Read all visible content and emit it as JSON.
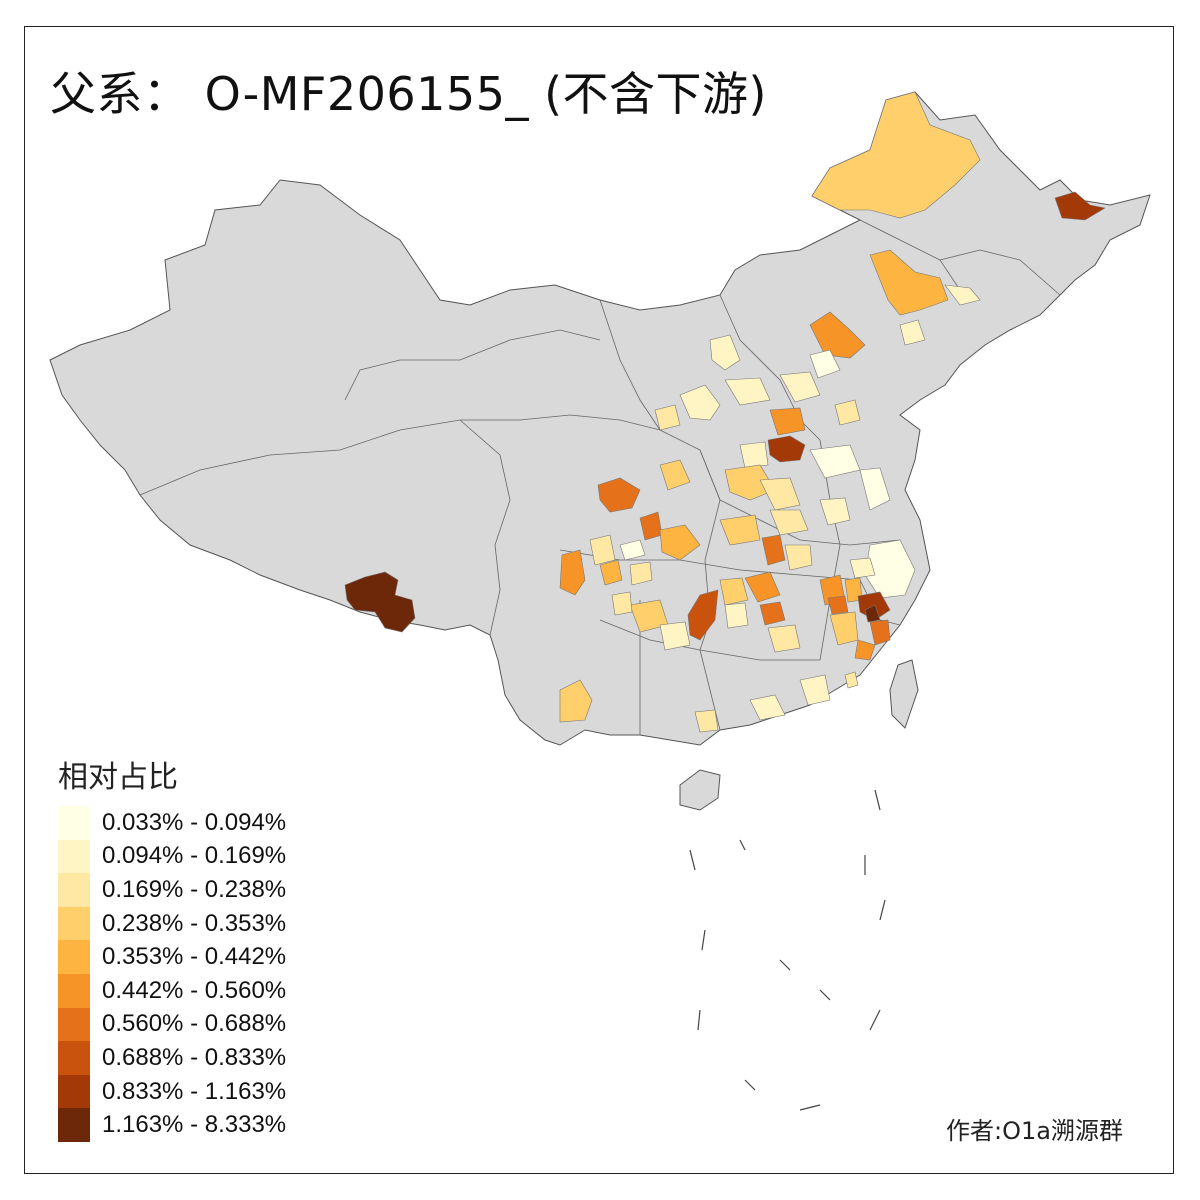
{
  "title": "父系： O-MF206155_ (不含下游)",
  "legend": {
    "title": "相对占比",
    "items": [
      {
        "label": "0.033% - 0.094%",
        "color": "#FFFFE5"
      },
      {
        "label": "0.094% - 0.169%",
        "color": "#FFF5C4"
      },
      {
        "label": "0.169% - 0.238%",
        "color": "#FFE8A4"
      },
      {
        "label": "0.238% - 0.353%",
        "color": "#FECF6A"
      },
      {
        "label": "0.353% - 0.442%",
        "color": "#FDB441"
      },
      {
        "label": "0.442% - 0.560%",
        "color": "#F79428"
      },
      {
        "label": "0.560% - 0.688%",
        "color": "#E5721A"
      },
      {
        "label": "0.688% - 0.833%",
        "color": "#C9530C"
      },
      {
        "label": "0.833% - 1.163%",
        "color": "#A23906"
      },
      {
        "label": "1.163% - 8.333%",
        "color": "#6C2808"
      }
    ]
  },
  "credit": "作者:O1a溯源群",
  "map": {
    "base_fill": "#D9D9D9",
    "border_color": "#444444"
  }
}
